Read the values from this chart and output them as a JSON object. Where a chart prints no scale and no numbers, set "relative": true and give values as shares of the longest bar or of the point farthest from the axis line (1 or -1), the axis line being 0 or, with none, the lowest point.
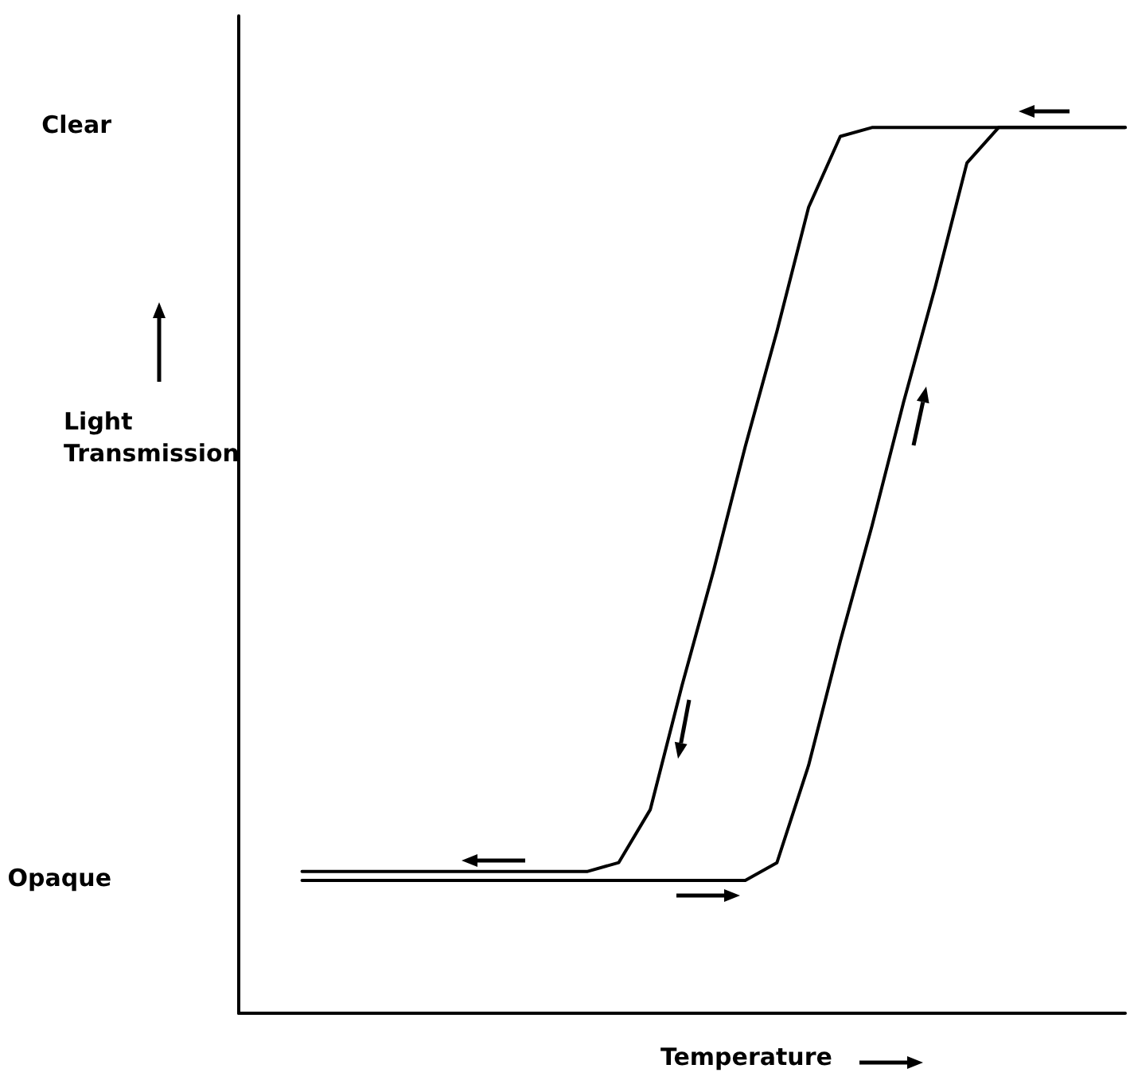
{
  "chart_data": {
    "type": "line",
    "xlabel": "Temperature",
    "ylabel": "Light Transmission",
    "relative": true,
    "categories": [
      null,
      null,
      null,
      null,
      null,
      null,
      null,
      null,
      null,
      null,
      null,
      null,
      null,
      null,
      null,
      null,
      null,
      null,
      null,
      null,
      null,
      null,
      null,
      null,
      null,
      null,
      null,
      null,
      null
    ],
    "series": [
      {
        "color": "#000000",
        "values": [
          null,
          null,
          0.16,
          0.16,
          0.16,
          0.16,
          0.16,
          0.16,
          0.16,
          0.16,
          0.16,
          0.16,
          0.17,
          0.23,
          0.37,
          0.5,
          0.64,
          0.77,
          0.91,
          0.99,
          1,
          1,
          1,
          1,
          1,
          1,
          1,
          1,
          1
        ]
      },
      {
        "color": "#000000",
        "values": [
          null,
          null,
          0.15,
          0.15,
          0.15,
          0.15,
          0.15,
          0.15,
          0.15,
          0.15,
          0.15,
          0.15,
          0.15,
          0.15,
          0.15,
          0.15,
          0.15,
          0.17,
          0.28,
          0.42,
          0.55,
          0.69,
          0.82,
          0.96,
          1,
          1,
          1,
          1,
          1
        ]
      }
    ],
    "annotations": [
      "Clear",
      "Opaque"
    ]
  }
}
